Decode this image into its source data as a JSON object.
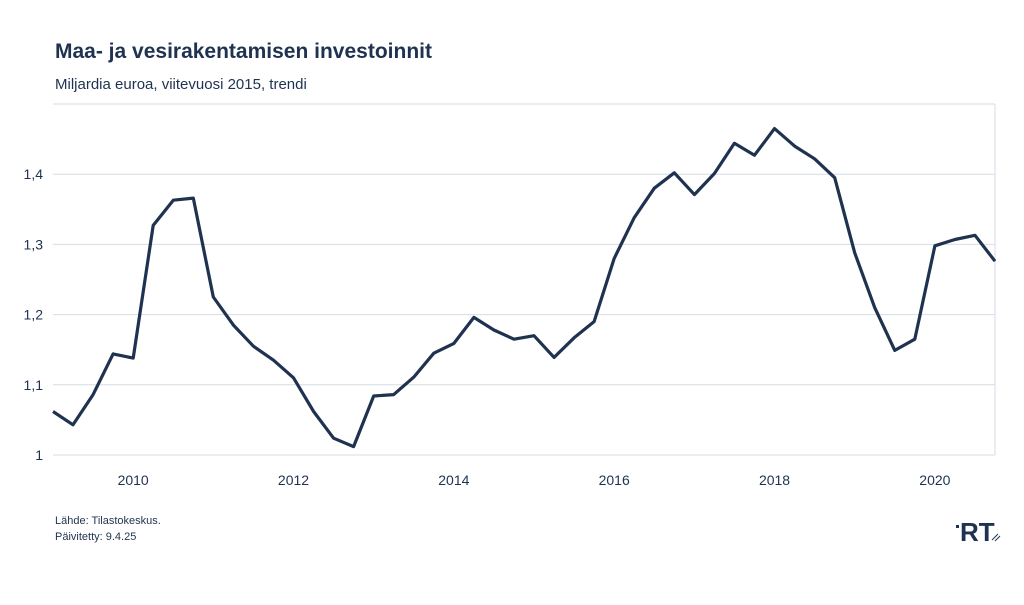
{
  "header": {
    "title": "Maa- ja vesirakentamisen investoinnit",
    "subtitle": "Miljardia euroa, viitevuosi 2015, trendi"
  },
  "footer": {
    "source": "Lähde: Tilastokeskus.",
    "updated": "Päivitetty: 9.4.25"
  },
  "logo": {
    "text": "RT"
  },
  "colors": {
    "line": "#1f3250",
    "grid": "#d4dde6",
    "text": "#1f3250"
  },
  "chart_data": {
    "type": "line",
    "title": "Maa- ja vesirakentamisen investoinnit",
    "subtitle": "Miljardia euroa, viitevuosi 2015, trendi",
    "xlim": [
      2009.0,
      2020.75
    ],
    "ylim": [
      1.0,
      1.5
    ],
    "yticks": [
      1,
      1.1,
      1.2,
      1.3,
      1.4
    ],
    "ytick_labels": [
      "1",
      "1,1",
      "1,2",
      "1,3",
      "1,4"
    ],
    "xticks": [
      2010,
      2012,
      2014,
      2016,
      2018,
      2020
    ],
    "xtick_labels": [
      "2010",
      "2012",
      "2014",
      "2016",
      "2018",
      "2020"
    ],
    "grid": "horizontal",
    "series": [
      {
        "x": [
          2009.0,
          2009.25,
          2009.5,
          2009.75,
          2010.0,
          2010.25,
          2010.5,
          2010.75,
          2011.0,
          2011.25,
          2011.5,
          2011.75,
          2012.0,
          2012.25,
          2012.5,
          2012.75,
          2013.0,
          2013.25,
          2013.5,
          2013.75,
          2014.0,
          2014.25,
          2014.5,
          2014.75,
          2015.0,
          2015.25,
          2015.5,
          2015.75,
          2016.0,
          2016.25,
          2016.5,
          2016.75,
          2017.0,
          2017.25,
          2017.5,
          2017.75,
          2018.0,
          2018.25,
          2018.5,
          2018.75,
          2019.0,
          2019.25,
          2019.5,
          2019.75,
          2020.0,
          2020.25,
          2020.5,
          2020.75
        ],
        "values": [
          1.062,
          1.043,
          1.086,
          1.144,
          1.138,
          1.327,
          1.363,
          1.366,
          1.225,
          1.185,
          1.155,
          1.135,
          1.11,
          1.062,
          1.024,
          1.012,
          1.084,
          1.086,
          1.111,
          1.145,
          1.159,
          1.196,
          1.178,
          1.165,
          1.17,
          1.139,
          1.167,
          1.19,
          1.28,
          1.338,
          1.38,
          1.402,
          1.371,
          1.401,
          1.444,
          1.427,
          1.465,
          1.44,
          1.422,
          1.395,
          1.288,
          1.21,
          1.149,
          1.165,
          1.298,
          1.307,
          1.313,
          1.276
        ]
      }
    ]
  }
}
